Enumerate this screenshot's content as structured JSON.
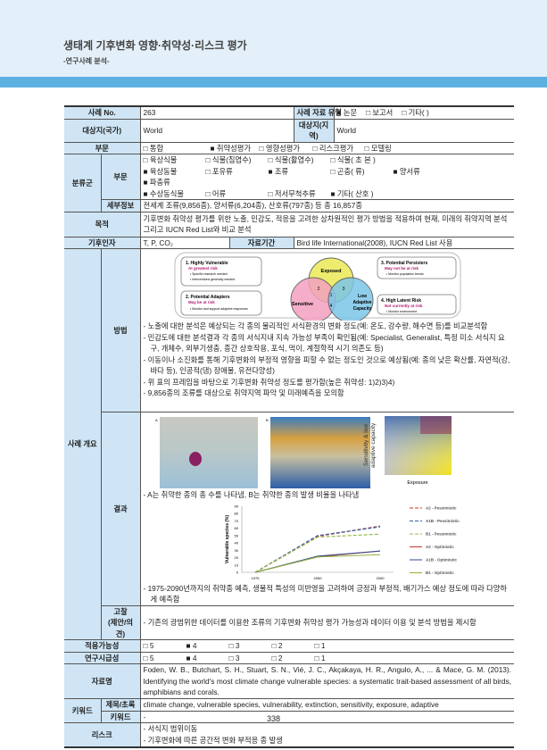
{
  "header": {
    "title": "생태계 기후변화 영향·취약성·리스크 평가",
    "subtitle": "-연구사례 분석-"
  },
  "row1": {
    "label": "사례 No.",
    "value": "263",
    "type_label": "사례 자료 유형",
    "types": [
      "■ 논문",
      "□ 보고서",
      "□ 기타(          )"
    ]
  },
  "row2": {
    "label": "대상지(국가)",
    "value": "World",
    "label2": "대상지(지역)",
    "value2": "World"
  },
  "row3": {
    "label": "부문",
    "options": [
      "□ 통합",
      "■ 취약성평가",
      "□ 영향성평가",
      "□ 리스크평가",
      "□ 모델링"
    ]
  },
  "taxa": {
    "label": "분류군",
    "sub_label": "부문",
    "lines": [
      [
        "□ 육상식물",
        "□ 식물(침엽수)",
        "□ 식물(활엽수)",
        "□ 식물( 초 본 )"
      ],
      [
        "■ 육상동물",
        "□ 포유류",
        "■ 조류",
        "□ 곤충(    류)",
        "■ 양서류",
        "■ 파충류"
      ],
      [
        "■ 수상동식물",
        "□ 어류",
        "□ 저서무척추류",
        "■ 기타( 산호 )"
      ]
    ],
    "detail_label": "세부정보",
    "detail": "전세계 조류(9,856종), 양서류(6,204종), 산호류(797종) 등 총 16,857종"
  },
  "purpose": {
    "label": "목적",
    "text": "기후변화 취약성 평가를 위한 노출, 민감도, 적응을 고려한 삼차원적인 평가 방법을 적용하여 현재, 미래의 취약지역 분석 그리고 IUCN Red List와 비교 분석"
  },
  "factor": {
    "label": "기후인자",
    "value": "T, P, CO₂",
    "period_label": "자료기간",
    "period": "Bird life International(2008), IUCN Red List 사용"
  },
  "overview_label": "사례 개요",
  "method": {
    "label": "방법",
    "diagram": {
      "box1_title": "1. Highly Vulnerable",
      "box1_risk": "At greatest risk",
      "box1_items": [
        "• Specific research needed",
        "• Interventions generally needed"
      ],
      "box2_title": "2. Potential Adapters",
      "box2_risk": "May be at risk",
      "box2_items": [
        "• Monitor and support adaptive responses"
      ],
      "box3_title": "3. Potential Persisters",
      "box3_risk": "May not be at risk",
      "box3_items": [
        "• Monitor population trends"
      ],
      "box4_title": "4. High Latent Risk",
      "box4_risk": "Not currently at risk",
      "box4_items": [
        "• Monitor environment"
      ],
      "exposed": "Exposed",
      "sensitive": "Sensitive",
      "low": "Low",
      "adaptive": "Adaptive",
      "capacity": "Capacity",
      "n1": "1",
      "n2": "2",
      "n3": "3",
      "n4": "4"
    },
    "bullets": [
      "- 노출에 대한 분석은 예상되는 각 종의 물리적인 서식환경의 변화 정도(예: 온도, 강수량, 해수면 등)를 비교분석함",
      "- 민감도에 대한 분석결과 각 종의 서식지내 지속 가능성 부족이 확인됨(예: Specialist, Generalist, 특정 미소 서식지 요구, 개체수, 외부기생충, 종간 상호작용, 포식, 먹이, 계절학적 시기 의존도 등)",
      "- 이동이나 소진화를 통해 기후변화의 부정적 영향을 피할 수 없는 정도인 것으로 예상됨(예: 종의 낮은 확산률, 자연적(강, 바다 등), 인공적(댐) 장애물, 유전다양성)",
      "- 위 표의 프레임을 바탕으로 기후변화 취약성 정도를 평가함(높은 취약성: 1)2)3)4)",
      "- 9,856종의 조류를 대상으로 취약지역 파악 및 미래예측을 모의함"
    ]
  },
  "result": {
    "label": "결과",
    "map_a": "A",
    "map_b": "B",
    "legend_y": "Sensitivity & low adaptive capacity",
    "legend_x": "Exposure",
    "caption1": "- A는 취약한 종의 총 수를 나타냄, B는 취약한 종의 발생 비율을 나타냄",
    "caption2": "- 1975-2090년까지의 취약종 예측, 생물적 특성의 미반영을 고려하여 긍정과 부정적, 배기가스 예상 정도에 따라 다양하게 예측함"
  },
  "chart_data": {
    "type": "line",
    "ylabel": "Vulnerable species (%)",
    "xlabel": "",
    "categories": [
      "1975",
      "2050",
      "2090"
    ],
    "ylim": [
      0,
      90
    ],
    "yticks": [
      0,
      10,
      20,
      30,
      40,
      50,
      60,
      70,
      80,
      90
    ],
    "legend": "right",
    "series": [
      {
        "name": "A2  - Pessimistic",
        "values": [
          0,
          49,
          63
        ],
        "color": "#c0392b",
        "dash": true
      },
      {
        "name": "A1B - Pessimistic",
        "values": [
          0,
          50,
          62
        ],
        "color": "#3a5ba0",
        "dash": true
      },
      {
        "name": "B1  - Pessimistic",
        "values": [
          0,
          48,
          52
        ],
        "color": "#9ab84a",
        "dash": true
      },
      {
        "name": "A2  - Optimistic",
        "values": [
          0,
          21,
          29
        ],
        "color": "#c0392b",
        "dash": false
      },
      {
        "name": "A1B - Optimistic",
        "values": [
          0,
          22,
          29
        ],
        "color": "#2e4a8a",
        "dash": false
      },
      {
        "name": "B1  - Optimistic",
        "values": [
          0,
          21,
          24
        ],
        "color": "#8db040",
        "dash": false
      }
    ]
  },
  "discussion": {
    "label1": "고찰",
    "label2": "(제안/의견)",
    "text": "- 기존의 광범위한 데이터를 이용한 조류의 기후변화 취약성 평가 가능성과 데이터 이용 및 분석 방법을 제시함"
  },
  "applicability": {
    "label": "적용가능성",
    "options": [
      "□ 5",
      "■ 4",
      "□ 3",
      "□ 2",
      "□ 1"
    ]
  },
  "urgency": {
    "label": "연구시급성",
    "options": [
      "□ 5",
      "■ 4",
      "□ 3",
      "□ 2",
      "□ 1"
    ]
  },
  "source": {
    "label": "자료명",
    "text": "Foden, W. B., Butchart, S. H., Stuart, S. N., Vié, J. C., Akçakaya, H. R., Angulo, A., ... & Mace, G. M. (2013). Identifying the world's most climate change vulnerable species: a systematic trait-based assessment of all birds, amphibians and corals."
  },
  "keyword": {
    "label": "키워드",
    "sub1": "제목/초록",
    "val1": "climate change, vulnerable species, vulnerability, extinction, sensitivity, exposure, adaptive",
    "sub2": "키워드",
    "val2": "-"
  },
  "risk": {
    "label": "리스크",
    "items": [
      "- 서식지 범위이동",
      "- 기후변화에 따른 공간적 변화 부적응 종 발생"
    ]
  },
  "page_number": "338"
}
